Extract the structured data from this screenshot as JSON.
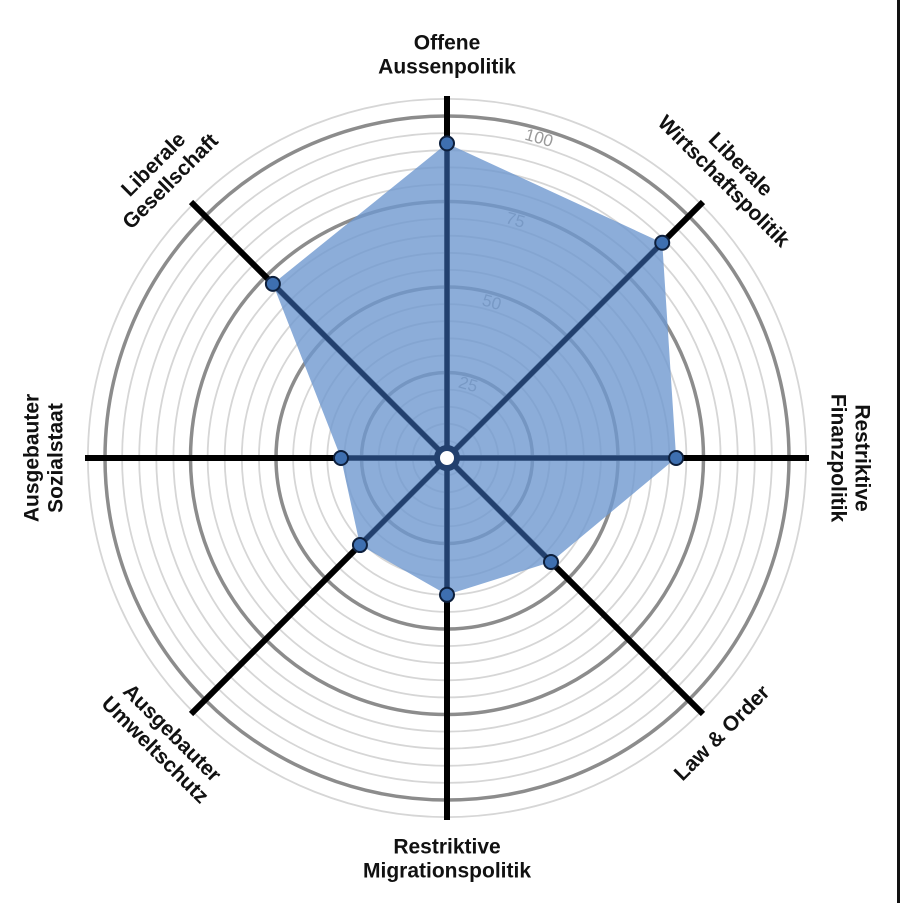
{
  "chart_data": {
    "type": "radar",
    "title": "",
    "axes": [
      {
        "label_lines": [
          "Offene",
          "Aussenpolitik"
        ],
        "value": 92
      },
      {
        "label_lines": [
          "Liberale",
          "Wirtschaftspolitik"
        ],
        "value": 89
      },
      {
        "label_lines": [
          "Restriktive",
          "Finanzpolitik"
        ],
        "value": 67
      },
      {
        "label_lines": [
          "Law & Order"
        ],
        "value": 43
      },
      {
        "label_lines": [
          "Restriktive",
          "Migrationspolitik"
        ],
        "value": 40
      },
      {
        "label_lines": [
          "Ausgebauter",
          "Umweltschutz"
        ],
        "value": 36
      },
      {
        "label_lines": [
          "Ausgebauter",
          "Sozialstaat"
        ],
        "value": 31
      },
      {
        "label_lines": [
          "Liberale",
          "Gesellschaft"
        ],
        "value": 72
      }
    ],
    "scale": {
      "min": 0,
      "max": 100
    },
    "tick_labels": [
      "25",
      "50",
      "75",
      "100"
    ],
    "tick_values": [
      25,
      50,
      75,
      100
    ],
    "colors": {
      "fill": "#6f98cf",
      "line": "#22406e",
      "point": "#3e6fb0",
      "major_ring": "#8c8c8c",
      "minor_ring": "#d6d6d6",
      "spoke": "#000000"
    }
  }
}
